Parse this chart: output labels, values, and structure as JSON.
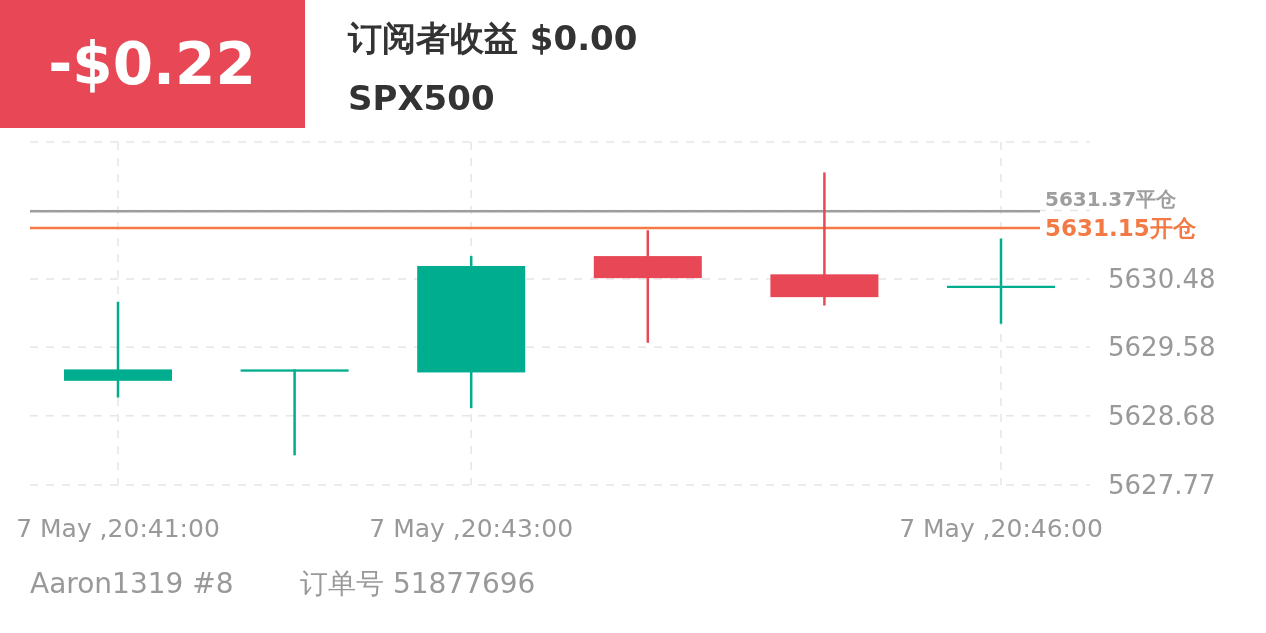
{
  "chart_data": {
    "type": "candlestick",
    "title": "订阅者收益 $0.00",
    "subtitle": "SPX500",
    "categories": [
      "7 May ,20:41:00",
      null,
      "7 May ,20:43:00",
      null,
      null,
      "7 May ,20:46:00"
    ],
    "ohlc": [
      [
        5629.14,
        5630.18,
        5628.92,
        5629.29
      ],
      [
        5629.26,
        5629.29,
        5628.16,
        5629.29
      ],
      [
        5629.25,
        5630.78,
        5628.78,
        5630.65
      ],
      [
        5630.78,
        5631.12,
        5629.64,
        5630.49
      ],
      [
        5630.54,
        5631.88,
        5630.13,
        5630.24
      ],
      [
        5630.36,
        5631.01,
        5629.89,
        5630.39
      ]
    ],
    "colors": [
      "#00ad8e",
      "#00ad8e",
      "#00ad8e",
      "#e84855",
      "#e84855",
      "#00ad8e"
    ],
    "ylim": [
      5627.77,
      5632.28
    ],
    "yticks": [
      5627.77,
      5628.68,
      5629.58,
      5630.48,
      {
        "value": 5631.38,
        "label": null
      },
      {
        "value": 5632.28,
        "label": null
      }
    ],
    "grid": true,
    "ref_lines": [
      {
        "axis": "y",
        "value": 5631.37,
        "label": "5631.37平仓",
        "color": "#9e9e9e"
      },
      {
        "axis": "y",
        "value": 5631.15,
        "label": "5631.15开仓",
        "color": "#f47a45"
      }
    ],
    "annotations": [
      "-$0.22",
      "Aaron1319 #8",
      "订单号 51877696"
    ]
  }
}
